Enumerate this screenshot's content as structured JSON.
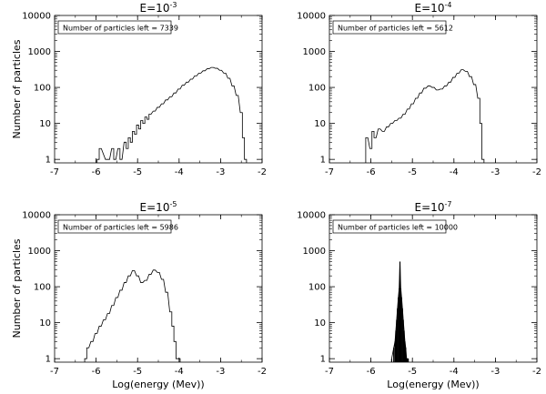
{
  "chart_data": [
    {
      "type": "line",
      "title": "E=10",
      "title_exp": "-3",
      "xlabel": "",
      "ylabel": "Number of particles",
      "xlim": [
        -7,
        -2
      ],
      "ylim": [
        0.8,
        10000
      ],
      "yscale": "log",
      "xticks": [
        "-7",
        "-6",
        "-5",
        "-4",
        "-3",
        "-2"
      ],
      "yticks": [
        "1",
        "10",
        "100",
        "1000",
        "10000"
      ],
      "legend": "Number of particles left = 7339",
      "legend_position": "top-left",
      "grid": false,
      "series": [
        {
          "style": "step",
          "x": [
            -5.95,
            -5.9,
            -5.75,
            -5.7,
            -5.6,
            -5.55,
            -5.45,
            -5.4,
            -5.3,
            -5.25,
            -5.2,
            -5.15,
            -5.1,
            -5.05,
            -5.0,
            -4.95,
            -4.9,
            -4.85,
            -4.8,
            -4.75,
            -4.7,
            -4.6,
            -4.5,
            -4.4,
            -4.3,
            -4.2,
            -4.1,
            -4.0,
            -3.9,
            -3.8,
            -3.7,
            -3.6,
            -3.5,
            -3.4,
            -3.3,
            -3.2,
            -3.1,
            -3.0,
            -2.9,
            -2.8,
            -2.7,
            -2.6,
            -2.5,
            -2.45,
            -2.4
          ],
          "y": [
            1,
            2,
            1,
            1,
            2,
            1,
            2,
            1,
            3,
            2,
            4,
            3,
            6,
            5,
            9,
            7,
            12,
            10,
            15,
            13,
            18,
            22,
            28,
            35,
            45,
            55,
            70,
            90,
            115,
            140,
            170,
            210,
            250,
            290,
            330,
            360,
            340,
            300,
            250,
            180,
            110,
            60,
            20,
            4,
            1
          ]
        }
      ]
    },
    {
      "type": "line",
      "title": "E=10",
      "title_exp": "-4",
      "xlabel": "",
      "ylabel": "",
      "xlim": [
        -7,
        -2
      ],
      "ylim": [
        0.8,
        10000
      ],
      "yscale": "log",
      "xticks": [
        "-7",
        "-6",
        "-5",
        "-4",
        "-3",
        "-2"
      ],
      "yticks": [
        "1",
        "10",
        "100",
        "1000",
        "10000"
      ],
      "legend": "Number of particles left = 5612",
      "legend_position": "top-left",
      "grid": false,
      "series": [
        {
          "style": "step",
          "x": [
            -6.1,
            -6.0,
            -5.95,
            -5.9,
            -5.8,
            -5.7,
            -5.6,
            -5.5,
            -5.4,
            -5.3,
            -5.2,
            -5.1,
            -5.0,
            -4.9,
            -4.8,
            -4.7,
            -4.6,
            -4.5,
            -4.4,
            -4.3,
            -4.2,
            -4.1,
            -4.0,
            -3.9,
            -3.8,
            -3.7,
            -3.6,
            -3.5,
            -3.4,
            -3.35,
            -3.3
          ],
          "y": [
            4,
            2,
            6,
            4,
            7,
            6,
            8,
            10,
            12,
            14,
            18,
            25,
            35,
            50,
            70,
            95,
            110,
            100,
            85,
            90,
            110,
            140,
            190,
            250,
            310,
            280,
            200,
            120,
            50,
            10,
            1
          ]
        }
      ]
    },
    {
      "type": "line",
      "title": "E=10",
      "title_exp": "-5",
      "xlabel": "Log(energy (Mev))",
      "ylabel": "Number of particles",
      "xlim": [
        -7,
        -2
      ],
      "ylim": [
        0.8,
        10000
      ],
      "yscale": "log",
      "xticks": [
        "-7",
        "-6",
        "-5",
        "-4",
        "-3",
        "-2"
      ],
      "yticks": [
        "1",
        "10",
        "100",
        "1000",
        "10000"
      ],
      "legend": "Number of particles left = 5986",
      "legend_position": "top-left",
      "grid": false,
      "series": [
        {
          "style": "step",
          "x": [
            -6.25,
            -6.2,
            -6.1,
            -6.0,
            -5.9,
            -5.8,
            -5.7,
            -5.6,
            -5.5,
            -5.4,
            -5.3,
            -5.2,
            -5.1,
            -5.0,
            -4.9,
            -4.8,
            -4.7,
            -4.6,
            -4.5,
            -4.4,
            -4.3,
            -4.2,
            -4.15,
            -4.1,
            -4.05,
            -4.0
          ],
          "y": [
            1,
            2,
            3,
            5,
            8,
            12,
            18,
            30,
            50,
            80,
            130,
            200,
            280,
            200,
            130,
            150,
            220,
            290,
            250,
            160,
            70,
            20,
            8,
            3,
            1,
            1
          ]
        }
      ]
    },
    {
      "type": "line",
      "title": "E=10",
      "title_exp": "-7",
      "xlabel": "Log(energy (Mev))",
      "ylabel": "",
      "xlim": [
        -7,
        -2
      ],
      "ylim": [
        0.8,
        10000
      ],
      "yscale": "log",
      "xticks": [
        "-7",
        "-6",
        "-5",
        "-4",
        "-3",
        "-2"
      ],
      "yticks": [
        "1",
        "10",
        "100",
        "1000",
        "10000"
      ],
      "legend": "Number of particles left = 10000",
      "legend_position": "top-left",
      "grid": false,
      "series": [
        {
          "style": "spike",
          "x": [
            -5.5,
            -5.45,
            -5.42,
            -5.4,
            -5.38,
            -5.36,
            -5.34,
            -5.32,
            -5.3,
            -5.28,
            -5.26,
            -5.24,
            -5.22,
            -5.2,
            -5.18,
            -5.16,
            -5.14,
            -5.12,
            -5.1
          ],
          "y": [
            1,
            2,
            3,
            6,
            12,
            25,
            50,
            90,
            500,
            90,
            50,
            25,
            12,
            6,
            3,
            2,
            1,
            1,
            1
          ]
        }
      ]
    }
  ]
}
